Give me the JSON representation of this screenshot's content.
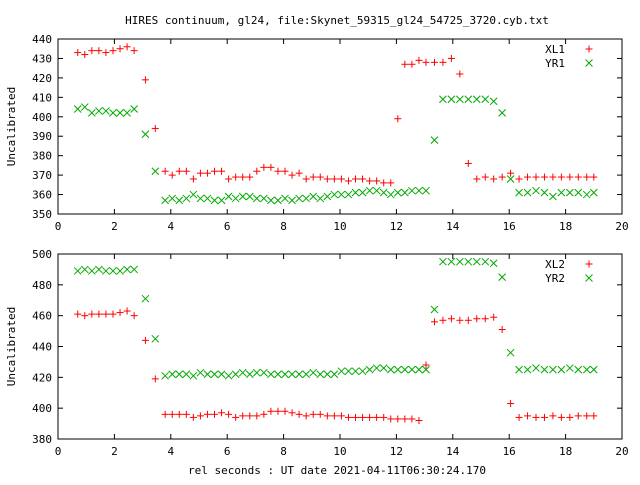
{
  "chart_data": [
    {
      "type": "scatter",
      "title": "HIRES continuum, gl24, file:Skynet_59315_gl24_54725_3720.cyb.txt",
      "xlabel": "",
      "ylabel": "Uncalibrated",
      "xlim": [
        0,
        20
      ],
      "ylim": [
        350,
        440
      ],
      "x_ticks": [
        0,
        2,
        4,
        6,
        8,
        10,
        12,
        14,
        16,
        18,
        20
      ],
      "y_ticks": [
        350,
        360,
        370,
        380,
        390,
        400,
        410,
        420,
        430,
        440
      ],
      "grid": false,
      "legend_position": "top-right",
      "series": [
        {
          "name": "XL1",
          "marker": "plus",
          "color": "#ff0000",
          "x": [
            0.7,
            0.95,
            1.2,
            1.45,
            1.7,
            1.95,
            2.2,
            2.45,
            2.7,
            3.1,
            3.45,
            3.8,
            4.05,
            4.3,
            4.55,
            4.8,
            5.05,
            5.3,
            5.55,
            5.8,
            6.05,
            6.3,
            6.55,
            6.8,
            7.05,
            7.3,
            7.55,
            7.8,
            8.05,
            8.3,
            8.55,
            8.8,
            9.05,
            9.3,
            9.55,
            9.8,
            10.05,
            10.3,
            10.55,
            10.8,
            11.05,
            11.3,
            11.55,
            11.8,
            12.05,
            12.3,
            12.55,
            12.8,
            13.05,
            13.35,
            13.65,
            13.95,
            14.25,
            14.55,
            14.85,
            15.15,
            15.45,
            15.75,
            16.05,
            16.35,
            16.65,
            16.95,
            17.25,
            17.55,
            17.85,
            18.15,
            18.45,
            18.75,
            19.0
          ],
          "y": [
            433,
            432,
            434,
            434,
            433,
            434,
            435,
            436,
            434,
            419,
            394,
            372,
            370,
            372,
            372,
            368,
            371,
            371,
            372,
            372,
            368,
            369,
            369,
            369,
            372,
            374,
            374,
            372,
            372,
            370,
            371,
            368,
            369,
            369,
            368,
            368,
            368,
            367,
            368,
            368,
            367,
            367,
            366,
            366,
            399,
            427,
            427,
            429,
            428,
            428,
            428,
            430,
            422,
            376,
            368,
            369,
            368,
            369,
            371,
            368,
            369,
            369,
            369,
            369,
            369,
            369,
            369,
            369,
            369
          ]
        },
        {
          "name": "YR1",
          "marker": "x",
          "color": "#00aa00",
          "x": [
            0.7,
            0.95,
            1.2,
            1.45,
            1.7,
            1.95,
            2.2,
            2.45,
            2.7,
            3.1,
            3.45,
            3.8,
            4.05,
            4.3,
            4.55,
            4.8,
            5.05,
            5.3,
            5.55,
            5.8,
            6.05,
            6.3,
            6.55,
            6.8,
            7.05,
            7.3,
            7.55,
            7.8,
            8.05,
            8.3,
            8.55,
            8.8,
            9.05,
            9.3,
            9.55,
            9.8,
            10.05,
            10.3,
            10.55,
            10.8,
            11.05,
            11.3,
            11.55,
            11.8,
            12.05,
            12.3,
            12.55,
            12.8,
            13.05,
            13.35,
            13.65,
            13.95,
            14.25,
            14.55,
            14.85,
            15.15,
            15.45,
            15.75,
            16.05,
            16.35,
            16.65,
            16.95,
            17.25,
            17.55,
            17.85,
            18.15,
            18.45,
            18.75,
            19.0
          ],
          "y": [
            404,
            405,
            402,
            403,
            403,
            402,
            402,
            402,
            404,
            391,
            372,
            357,
            358,
            357,
            358,
            360,
            358,
            358,
            357,
            357,
            359,
            358,
            359,
            359,
            358,
            358,
            357,
            357,
            358,
            357,
            358,
            358,
            359,
            358,
            359,
            360,
            360,
            360,
            361,
            361,
            362,
            362,
            361,
            360,
            361,
            361,
            362,
            362,
            362,
            388,
            409,
            409,
            409,
            409,
            409,
            409,
            408,
            402,
            368,
            361,
            361,
            362,
            361,
            359,
            361,
            361,
            361,
            360,
            361
          ]
        }
      ]
    },
    {
      "type": "scatter",
      "title": "",
      "xlabel": "rel seconds : UT date 2021-04-11T06:30:24.170",
      "ylabel": "Uncalibrated",
      "xlim": [
        0,
        20
      ],
      "ylim": [
        380,
        500
      ],
      "x_ticks": [
        0,
        2,
        4,
        6,
        8,
        10,
        12,
        14,
        16,
        18,
        20
      ],
      "y_ticks": [
        380,
        400,
        420,
        440,
        460,
        480,
        500
      ],
      "grid": false,
      "legend_position": "top-right",
      "series": [
        {
          "name": "XL2",
          "marker": "plus",
          "color": "#ff0000",
          "x": [
            0.7,
            0.95,
            1.2,
            1.45,
            1.7,
            1.95,
            2.2,
            2.45,
            2.7,
            3.1,
            3.45,
            3.8,
            4.05,
            4.3,
            4.55,
            4.8,
            5.05,
            5.3,
            5.55,
            5.8,
            6.05,
            6.3,
            6.55,
            6.8,
            7.05,
            7.3,
            7.55,
            7.8,
            8.05,
            8.3,
            8.55,
            8.8,
            9.05,
            9.3,
            9.55,
            9.8,
            10.05,
            10.3,
            10.55,
            10.8,
            11.05,
            11.3,
            11.55,
            11.8,
            12.05,
            12.3,
            12.55,
            12.8,
            13.05,
            13.35,
            13.65,
            13.95,
            14.25,
            14.55,
            14.85,
            15.15,
            15.45,
            15.75,
            16.05,
            16.35,
            16.65,
            16.95,
            17.25,
            17.55,
            17.85,
            18.15,
            18.45,
            18.75,
            19.0
          ],
          "y": [
            461,
            460,
            461,
            461,
            461,
            461,
            462,
            463,
            460,
            444,
            419,
            396,
            396,
            396,
            396,
            394,
            395,
            396,
            396,
            397,
            396,
            394,
            395,
            395,
            395,
            396,
            398,
            398,
            398,
            397,
            396,
            395,
            396,
            396,
            395,
            395,
            395,
            394,
            394,
            394,
            394,
            394,
            394,
            393,
            393,
            393,
            393,
            392,
            428,
            456,
            457,
            458,
            457,
            457,
            458,
            458,
            459,
            451,
            403,
            394,
            395,
            394,
            394,
            395,
            394,
            394,
            395,
            395,
            395
          ]
        },
        {
          "name": "YR2",
          "marker": "x",
          "color": "#00aa00",
          "x": [
            0.7,
            0.95,
            1.2,
            1.45,
            1.7,
            1.95,
            2.2,
            2.45,
            2.7,
            3.1,
            3.45,
            3.8,
            4.05,
            4.3,
            4.55,
            4.8,
            5.05,
            5.3,
            5.55,
            5.8,
            6.05,
            6.3,
            6.55,
            6.8,
            7.05,
            7.3,
            7.55,
            7.8,
            8.05,
            8.3,
            8.55,
            8.8,
            9.05,
            9.3,
            9.55,
            9.8,
            10.05,
            10.3,
            10.55,
            10.8,
            11.05,
            11.3,
            11.55,
            11.8,
            12.05,
            12.3,
            12.55,
            12.8,
            13.05,
            13.35,
            13.65,
            13.95,
            14.25,
            14.55,
            14.85,
            15.15,
            15.45,
            15.75,
            16.05,
            16.35,
            16.65,
            16.95,
            17.25,
            17.55,
            17.85,
            18.15,
            18.45,
            18.75,
            19.0
          ],
          "y": [
            489,
            490,
            489,
            490,
            489,
            489,
            489,
            490,
            490,
            471,
            445,
            421,
            422,
            422,
            422,
            421,
            423,
            422,
            422,
            422,
            421,
            422,
            423,
            422,
            423,
            423,
            422,
            422,
            422,
            422,
            422,
            422,
            423,
            422,
            422,
            422,
            424,
            424,
            424,
            424,
            425,
            426,
            426,
            425,
            425,
            425,
            425,
            425,
            425,
            464,
            495,
            495,
            495,
            495,
            495,
            495,
            494,
            485,
            436,
            425,
            425,
            426,
            425,
            425,
            425,
            426,
            425,
            425,
            425
          ]
        }
      ]
    }
  ]
}
